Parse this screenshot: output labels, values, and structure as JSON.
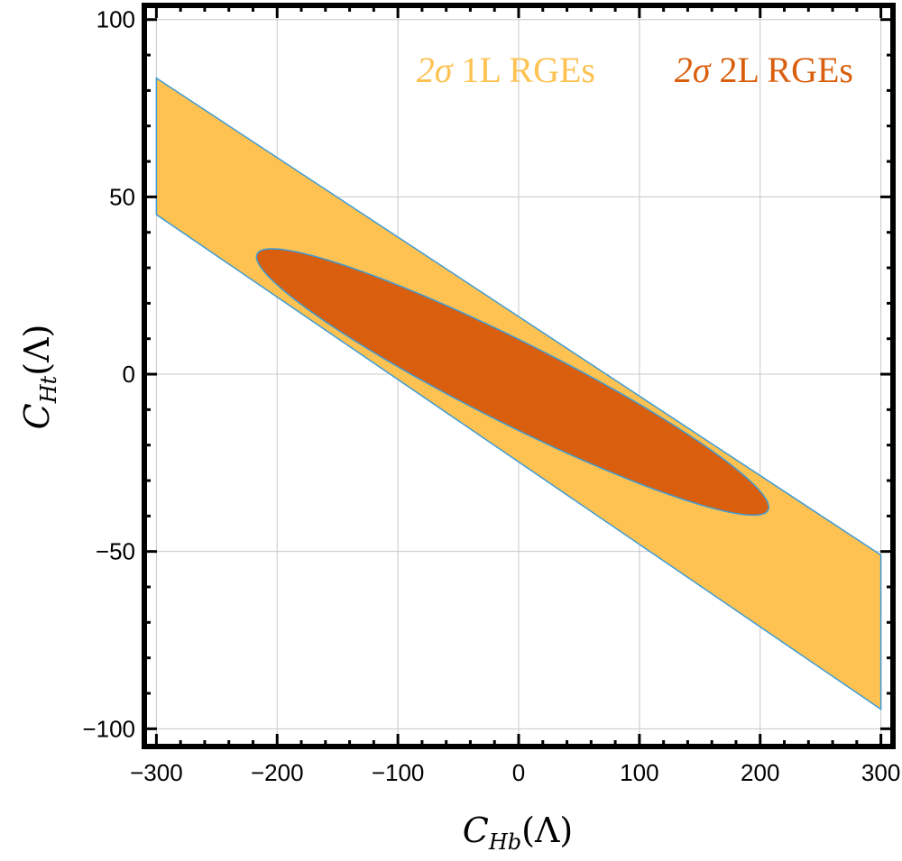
{
  "chart_data": {
    "type": "region",
    "xlabel": {
      "main": "C",
      "sub": "Hb",
      "suffix": "(Λ)"
    },
    "ylabel": {
      "main": "C",
      "sub": "Ht",
      "suffix": "(Λ)"
    },
    "xlim": [
      -310,
      310
    ],
    "ylim": [
      -105,
      104
    ],
    "xticks": [
      -300,
      -200,
      -100,
      0,
      100,
      200,
      300
    ],
    "yticks": [
      -100,
      -50,
      0,
      50,
      100
    ],
    "xtick_labels": [
      "−300",
      "−200",
      "−100",
      "0",
      "100",
      "200",
      "300"
    ],
    "ytick_labels": [
      "−100",
      "−50",
      "0",
      "50",
      "100"
    ],
    "grid": true,
    "legend_position": "top-right",
    "series": [
      {
        "name": "2σ 1L RGEs",
        "label_prefix": "2σ",
        "label_text": "1L RGEs",
        "shape": "polygon",
        "color": "#FDC251",
        "edge_color": "#3E9BD6",
        "vertices": [
          [
            -300,
            83.5
          ],
          [
            300,
            -51
          ],
          [
            300,
            -94.5
          ],
          [
            -300,
            45
          ]
        ]
      },
      {
        "name": "2σ 2L RGEs",
        "label_prefix": "2σ",
        "label_text": "2L RGEs",
        "shape": "ellipse",
        "color": "#D95F0E",
        "edge_color": "#3E9BD6",
        "center": [
          -5,
          -2.2
        ],
        "semi_axis_major": 215,
        "semi_axis_minor": 12.7,
        "major_axis_slope": -0.167
      }
    ]
  }
}
